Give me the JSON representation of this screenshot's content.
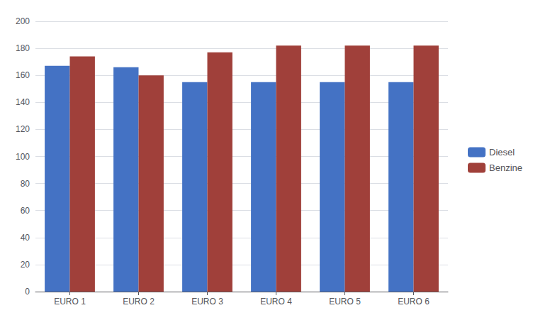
{
  "chart_data": {
    "type": "bar",
    "categories": [
      "EURO 1",
      "EURO 2",
      "EURO 3",
      "EURO 4",
      "EURO 5",
      "EURO 6"
    ],
    "series": [
      {
        "name": "Diesel",
        "color": "#4472C4",
        "values": [
          167,
          166,
          155,
          155,
          155,
          155
        ]
      },
      {
        "name": "Benzine",
        "color": "#A0403A",
        "values": [
          174,
          160,
          177,
          182,
          182,
          182
        ]
      }
    ],
    "ylim": [
      0,
      200
    ],
    "yticks": [
      0,
      20,
      40,
      60,
      80,
      100,
      120,
      140,
      160,
      180,
      200
    ],
    "grid": true,
    "legend": "right"
  }
}
